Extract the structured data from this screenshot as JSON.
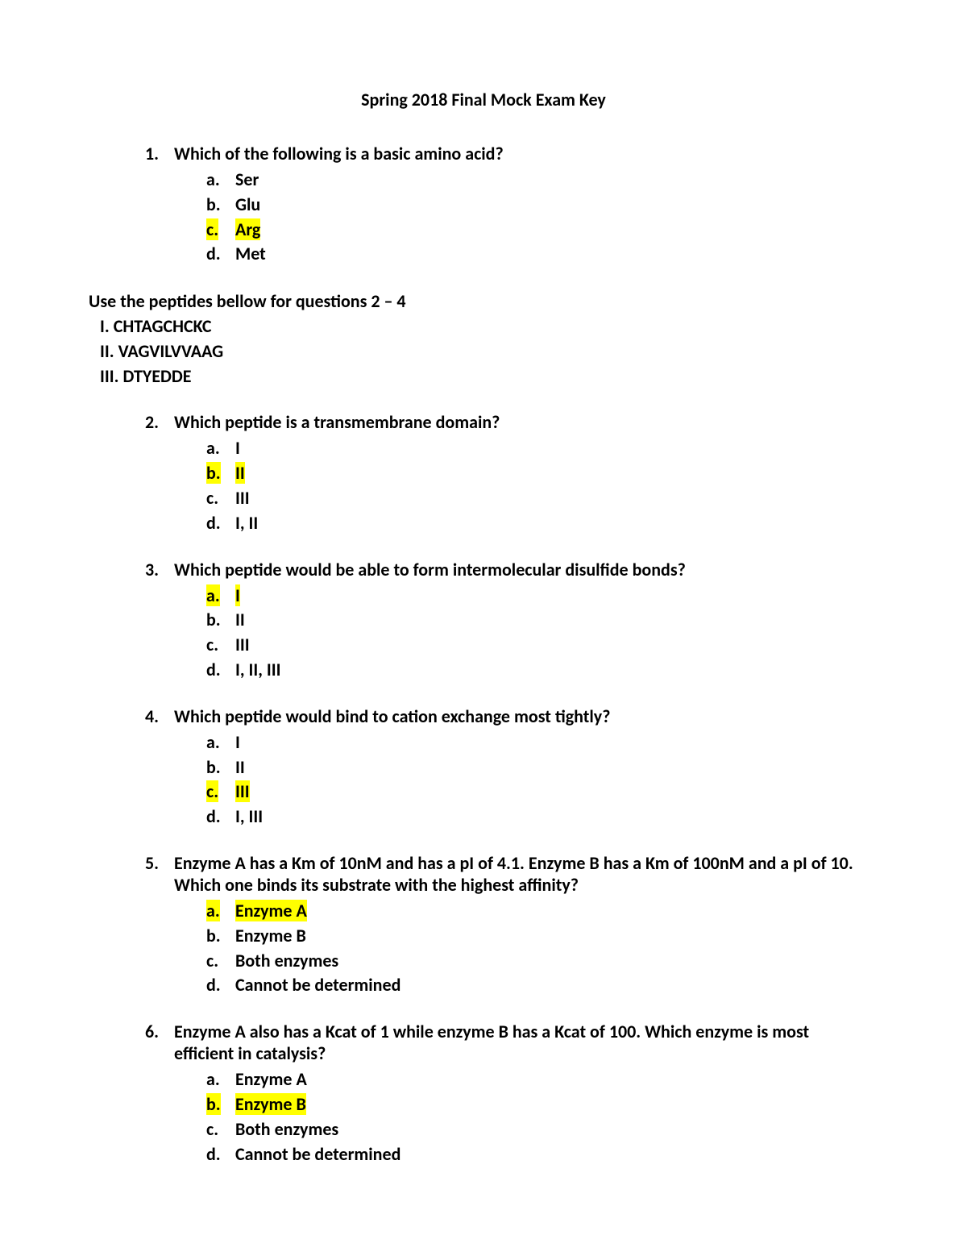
{
  "title": "Spring 2018 Final Mock Exam Key",
  "highlight_color": "#ffff00",
  "background_color": "#ffffff",
  "text_color": "#000000",
  "font_family": "Calibri, Arial, sans-serif",
  "title_fontsize": 22,
  "body_fontsize": 22,
  "questions": [
    {
      "number": "1.",
      "text": "Which of the following is a basic amino acid?",
      "options": [
        {
          "letter": "a.",
          "text": "Ser",
          "highlighted": false
        },
        {
          "letter": "b.",
          "text": "Glu",
          "highlighted": false
        },
        {
          "letter": "c.",
          "text": "Arg",
          "highlighted": true
        },
        {
          "letter": "d.",
          "text": "Met",
          "highlighted": false
        }
      ]
    }
  ],
  "instruction": {
    "header": "Use the peptides bellow for questions 2 – 4",
    "peptides": [
      "I. CHTAGCHCKC",
      "II. VAGVILVVAAG",
      "III. DTYEDDE"
    ]
  },
  "questions2": [
    {
      "number": "2.",
      "text": "Which peptide is a transmembrane domain?",
      "options": [
        {
          "letter": "a.",
          "text": "I",
          "highlighted": false
        },
        {
          "letter": "b.",
          "text": "II",
          "highlighted": true
        },
        {
          "letter": "c.",
          "text": "III",
          "highlighted": false
        },
        {
          "letter": "d.",
          "text": "I, II",
          "highlighted": false
        }
      ]
    },
    {
      "number": "3.",
      "text": "Which peptide would be able to form intermolecular disulfide bonds?",
      "options": [
        {
          "letter": "a.",
          "text": "I",
          "highlighted": true
        },
        {
          "letter": "b.",
          "text": "II",
          "highlighted": false
        },
        {
          "letter": "c.",
          "text": "III",
          "highlighted": false
        },
        {
          "letter": "d.",
          "text": "I, II, III",
          "highlighted": false
        }
      ]
    },
    {
      "number": "4.",
      "text": "Which peptide would bind to cation exchange most tightly?",
      "options": [
        {
          "letter": "a.",
          "text": "I",
          "highlighted": false
        },
        {
          "letter": "b.",
          "text": "II",
          "highlighted": false
        },
        {
          "letter": "c.",
          "text": "III",
          "highlighted": true
        },
        {
          "letter": "d.",
          "text": "I, III",
          "highlighted": false
        }
      ]
    },
    {
      "number": "5.",
      "text": "Enzyme A has a Km of 10nM and has a pI of 4.1. Enzyme B has a Km of 100nM and a pI of 10. Which one binds its substrate with the highest affinity?",
      "options": [
        {
          "letter": "a.",
          "text": "Enzyme A",
          "highlighted": true
        },
        {
          "letter": "b.",
          "text": "Enzyme B",
          "highlighted": false
        },
        {
          "letter": "c.",
          "text": "Both enzymes",
          "highlighted": false
        },
        {
          "letter": "d.",
          "text": "Cannot be determined",
          "highlighted": false
        }
      ]
    },
    {
      "number": "6.",
      "text": "Enzyme A also has a Kcat of 1 while enzyme B has a Kcat of 100. Which enzyme is most efficient in catalysis?",
      "options": [
        {
          "letter": "a.",
          "text": "Enzyme A",
          "highlighted": false
        },
        {
          "letter": "b.",
          "text": "Enzyme B",
          "highlighted": true
        },
        {
          "letter": "c.",
          "text": "Both enzymes",
          "highlighted": false
        },
        {
          "letter": "d.",
          "text": "Cannot be determined",
          "highlighted": false
        }
      ]
    }
  ]
}
